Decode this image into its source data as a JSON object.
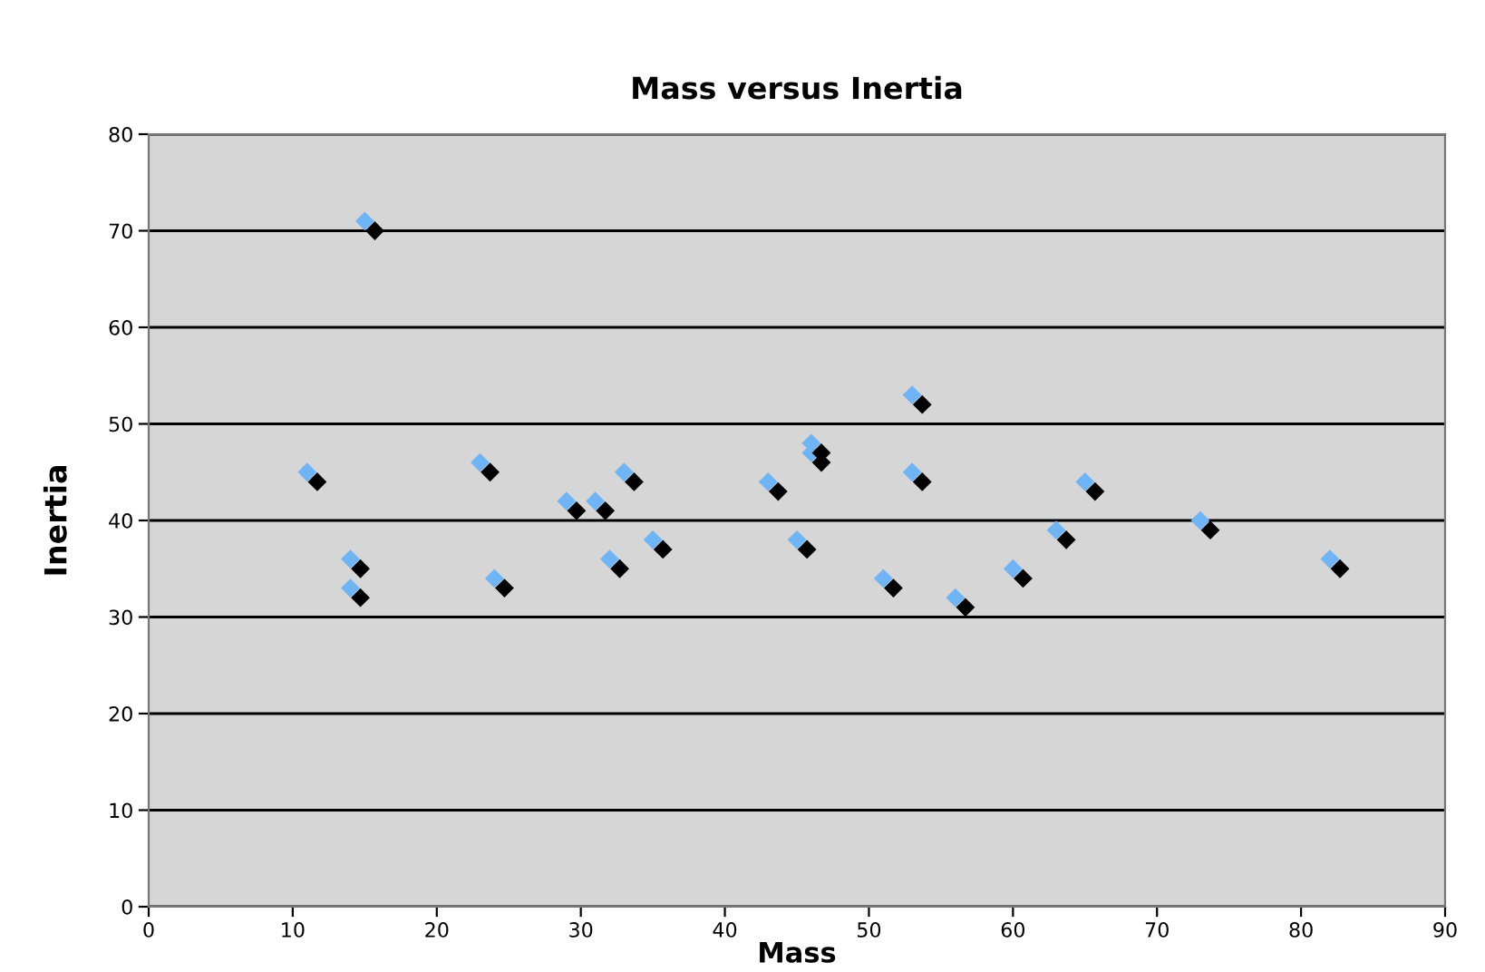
{
  "chart_data": {
    "type": "scatter",
    "title": "Mass versus Inertia",
    "xlabel": "Mass",
    "ylabel": "Inertia",
    "xlim": [
      0,
      90
    ],
    "xticks": [
      0,
      10,
      20,
      30,
      40,
      50,
      60,
      70,
      80,
      90
    ],
    "ylim": [
      0,
      80
    ],
    "yticks": [
      0,
      10,
      20,
      30,
      40,
      50,
      60,
      70,
      80
    ],
    "grid": "y",
    "marker": "diamond",
    "series": [
      {
        "color": "#6fb4f5",
        "x": [
          11,
          14,
          14,
          15,
          23,
          24,
          29,
          31,
          32,
          33,
          35,
          43,
          45,
          46,
          46,
          51,
          53,
          53,
          56,
          60,
          63,
          65,
          73,
          82
        ],
        "values": [
          45,
          36,
          33,
          71,
          46,
          34,
          42,
          42,
          36,
          45,
          38,
          44,
          38,
          48,
          47,
          34,
          53,
          45,
          32,
          35,
          39,
          44,
          40,
          36
        ]
      },
      {
        "color": "#000000",
        "x": [
          11.7,
          14.7,
          14.7,
          15.7,
          23.7,
          24.7,
          29.7,
          31.7,
          32.7,
          33.7,
          35.7,
          43.7,
          45.7,
          46.7,
          46.7,
          51.7,
          53.7,
          53.7,
          56.7,
          60.7,
          63.7,
          65.7,
          73.7,
          82.7
        ],
        "values": [
          44,
          35,
          32,
          70,
          45,
          33,
          41,
          41,
          35,
          44,
          37,
          43,
          37,
          47,
          46,
          33,
          52,
          44,
          31,
          34,
          38,
          43,
          39,
          35
        ]
      }
    ]
  }
}
